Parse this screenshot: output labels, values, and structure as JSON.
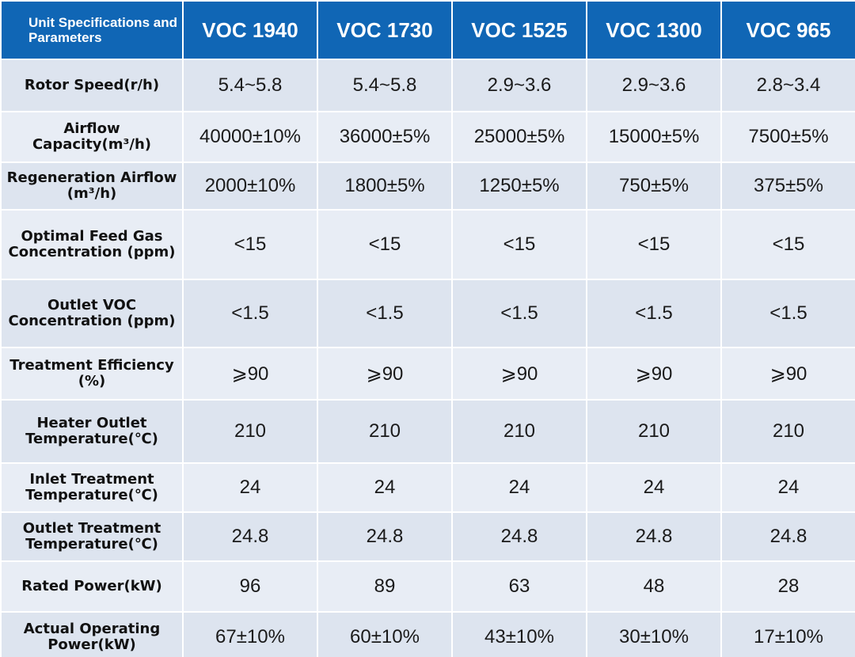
{
  "table": {
    "header": {
      "corner": "Unit Specifications and Parameters",
      "models": [
        "VOC 1940",
        "VOC 1730",
        "VOC 1525",
        "VOC 1300",
        "VOC 965"
      ]
    },
    "rows": [
      {
        "label": "Rotor Speed(r/h)",
        "values": [
          "5.4~5.8",
          "5.4~5.8",
          "2.9~3.6",
          "2.9~3.6",
          "2.8~3.4"
        ]
      },
      {
        "label": "Airflow Capacity(m³/h)",
        "values": [
          "40000±10%",
          "36000±5%",
          "25000±5%",
          "15000±5%",
          "7500±5%"
        ]
      },
      {
        "label": "Regeneration Airflow (m³/h)",
        "values": [
          "2000±10%",
          "1800±5%",
          "1250±5%",
          "750±5%",
          "375±5%"
        ]
      },
      {
        "label": "Optimal Feed Gas Concentration (ppm)",
        "values": [
          "<15",
          "<15",
          "<15",
          "<15",
          "<15"
        ]
      },
      {
        "label": "Outlet VOC Concentration (ppm)",
        "values": [
          "<1.5",
          "<1.5",
          "<1.5",
          "<1.5",
          "<1.5"
        ]
      },
      {
        "label": "Treatment Efficiency (%)",
        "values": [
          "⩾90",
          "⩾90",
          "⩾90",
          "⩾90",
          "⩾90"
        ]
      },
      {
        "label": "Heater Outlet Temperature(℃)",
        "values": [
          "210",
          "210",
          "210",
          "210",
          "210"
        ]
      },
      {
        "label": "Inlet Treatment Temperature(℃)",
        "values": [
          "24",
          "24",
          "24",
          "24",
          "24"
        ]
      },
      {
        "label": "Outlet Treatment Temperature(℃)",
        "values": [
          "24.8",
          "24.8",
          "24.8",
          "24.8",
          "24.8"
        ]
      },
      {
        "label": "Rated Power(kW)",
        "values": [
          "96",
          "89",
          "63",
          "48",
          "28"
        ]
      },
      {
        "label": "Actual Operating Power(kW)",
        "values": [
          "67±10%",
          "60±10%",
          "43±10%",
          "30±10%",
          "17±10%"
        ]
      }
    ]
  }
}
